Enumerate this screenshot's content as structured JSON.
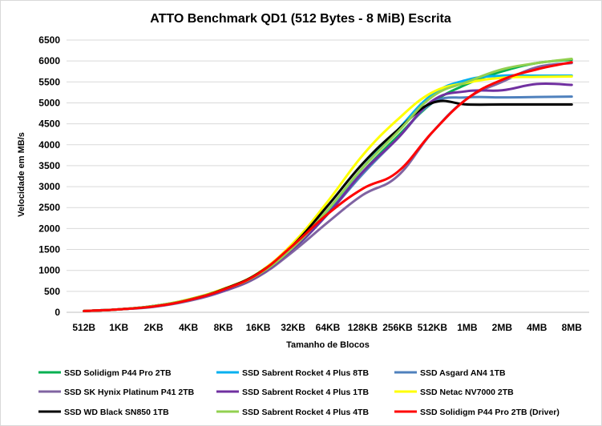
{
  "chart_data": {
    "type": "line",
    "title": "ATTO Benchmark QD1 (512 Bytes - 8 MiB) Escrita",
    "xlabel": "Tamanho de Blocos",
    "ylabel": "Velocidade em MB/s",
    "categories": [
      "512B",
      "1KB",
      "2KB",
      "4KB",
      "8KB",
      "16KB",
      "32KB",
      "64KB",
      "128KB",
      "256KB",
      "512KB",
      "1MB",
      "2MB",
      "4MB",
      "8MB"
    ],
    "ylim": [
      0,
      6500
    ],
    "yticks": [
      "0",
      "500",
      "1000",
      "1500",
      "2000",
      "2500",
      "3000",
      "3500",
      "4000",
      "4500",
      "5000",
      "5500",
      "6000",
      "6500"
    ],
    "grid": true,
    "legend_position": "bottom",
    "series": [
      {
        "name": "SSD Solidigm P44 Pro 2TB",
        "color": "#00b050",
        "values": [
          30,
          70,
          140,
          290,
          530,
          880,
          1520,
          2350,
          3350,
          4200,
          5000,
          5450,
          5750,
          5950,
          6030
        ]
      },
      {
        "name": "SSD Sabrent Rocket 4 Plus 8TB",
        "color": "#00b0f0",
        "values": [
          30,
          70,
          140,
          290,
          530,
          900,
          1570,
          2430,
          3450,
          4350,
          5200,
          5550,
          5650,
          5650,
          5650
        ]
      },
      {
        "name": "SSD Asgard AN4 1TB",
        "color": "#4f81bd",
        "values": [
          30,
          70,
          140,
          280,
          520,
          880,
          1500,
          2350,
          3300,
          4150,
          5000,
          5130,
          5130,
          5140,
          5150
        ]
      },
      {
        "name": "SSD SK Hynix Platinum P41 2TB",
        "color": "#8064a2",
        "values": [
          30,
          70,
          130,
          270,
          500,
          850,
          1450,
          2150,
          2800,
          3250,
          4300,
          5100,
          5500,
          5850,
          5950
        ]
      },
      {
        "name": "SSD Sabrent Rocket 4 Plus 1TB",
        "color": "#7030a0",
        "values": [
          30,
          70,
          140,
          290,
          520,
          880,
          1520,
          2350,
          3350,
          4150,
          5050,
          5280,
          5300,
          5450,
          5430
        ]
      },
      {
        "name": "SSD Netac NV7000 2TB",
        "color": "#ffff00",
        "values": [
          30,
          70,
          150,
          310,
          560,
          940,
          1650,
          2650,
          3750,
          4600,
          5250,
          5480,
          5600,
          5620,
          5630
        ]
      },
      {
        "name": "SSD WD Black SN850 1TB",
        "color": "#000000",
        "values": [
          30,
          70,
          150,
          300,
          550,
          930,
          1600,
          2550,
          3550,
          4350,
          5000,
          4960,
          4960,
          4960,
          4960
        ]
      },
      {
        "name": "SSD Sabrent Rocket 4 Plus 4TB",
        "color": "#92d050",
        "values": [
          30,
          70,
          150,
          300,
          540,
          900,
          1550,
          2450,
          3450,
          4300,
          5150,
          5500,
          5800,
          5950,
          6050
        ]
      },
      {
        "name": "SSD Solidigm P44 Pro 2TB (Driver)",
        "color": "#ff0000",
        "values": [
          30,
          70,
          140,
          290,
          540,
          920,
          1600,
          2350,
          2950,
          3350,
          4300,
          5100,
          5550,
          5800,
          5970
        ]
      }
    ]
  }
}
